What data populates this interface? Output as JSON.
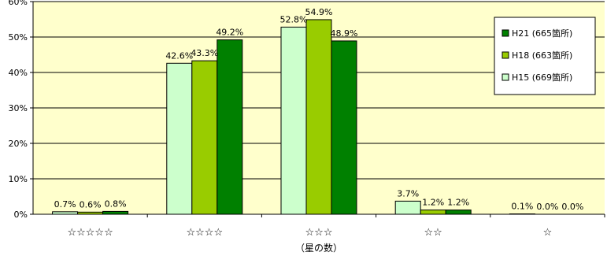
{
  "chart_data": {
    "type": "bar",
    "title": "",
    "xlabel": "（星の数）",
    "ylabel": "",
    "ylim": [
      0,
      60
    ],
    "yticks": [
      "0%",
      "10%",
      "20%",
      "30%",
      "40%",
      "50%",
      "60%"
    ],
    "grid": true,
    "legend_position": "top-right",
    "plot_background": "#FFFFCC",
    "categories": [
      "☆☆☆☆☆",
      "☆☆☆☆",
      "☆☆☆",
      "☆☆",
      "☆"
    ],
    "series": [
      {
        "name": "H15 (669箇所)",
        "color": "#CCFFCC",
        "values": [
          0.7,
          42.6,
          52.8,
          3.7,
          0.1
        ],
        "labels": [
          "0.7%",
          "42.6%",
          "52.8%",
          "3.7%",
          "0.1%"
        ]
      },
      {
        "name": "H18 (663箇所)",
        "color": "#99CC00",
        "values": [
          0.6,
          43.3,
          54.9,
          1.2,
          0.0
        ],
        "labels": [
          "0.6%",
          "43.3%",
          "54.9%",
          "1.2%",
          "0.0%"
        ]
      },
      {
        "name": "H21 (665箇所)",
        "color": "#008000",
        "values": [
          0.8,
          49.2,
          48.9,
          1.2,
          0.0
        ],
        "labels": [
          "0.8%",
          "49.2%",
          "48.9%",
          "1.2%",
          "0.0%"
        ]
      }
    ],
    "legend_order": [
      2,
      1,
      0
    ]
  }
}
